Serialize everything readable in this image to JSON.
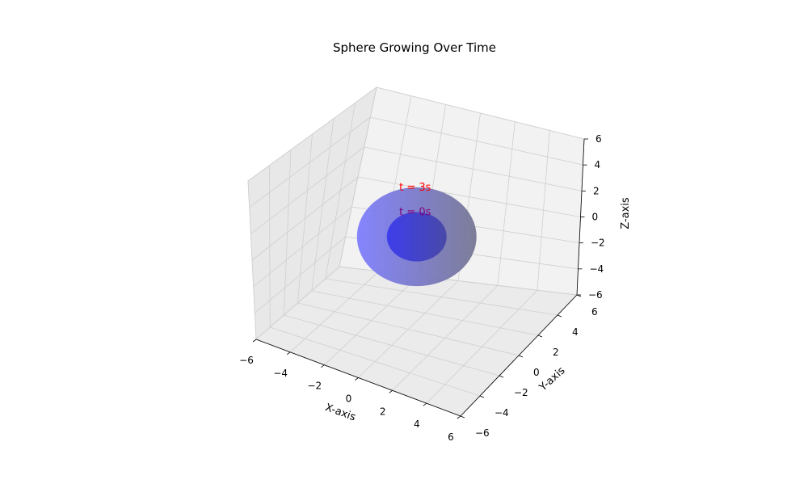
{
  "chart_data": {
    "type": "surface3d",
    "title": "Sphere Growing Over Time",
    "xlabel": "X-axis",
    "ylabel": "Y-axis",
    "zlabel": "Z-axis",
    "xlim": [
      -6,
      6
    ],
    "ylim": [
      -6,
      6
    ],
    "zlim": [
      -6,
      6
    ],
    "xticks": [
      -6,
      -4,
      -2,
      0,
      2,
      4,
      6
    ],
    "yticks": [
      -6,
      -4,
      -2,
      0,
      2,
      4,
      6
    ],
    "zticks": [
      -6,
      -4,
      -2,
      0,
      2,
      4,
      6
    ],
    "grid": true,
    "spheres": [
      {
        "label": "t = 3s",
        "center": [
          0,
          0,
          0
        ],
        "radius": 4,
        "color": "#6f6ff6",
        "label_color": "#ff0000"
      },
      {
        "label": "t = 0s",
        "center": [
          0,
          0,
          0
        ],
        "radius": 2,
        "color": "#3535e6",
        "label_color": "#800080"
      }
    ]
  }
}
